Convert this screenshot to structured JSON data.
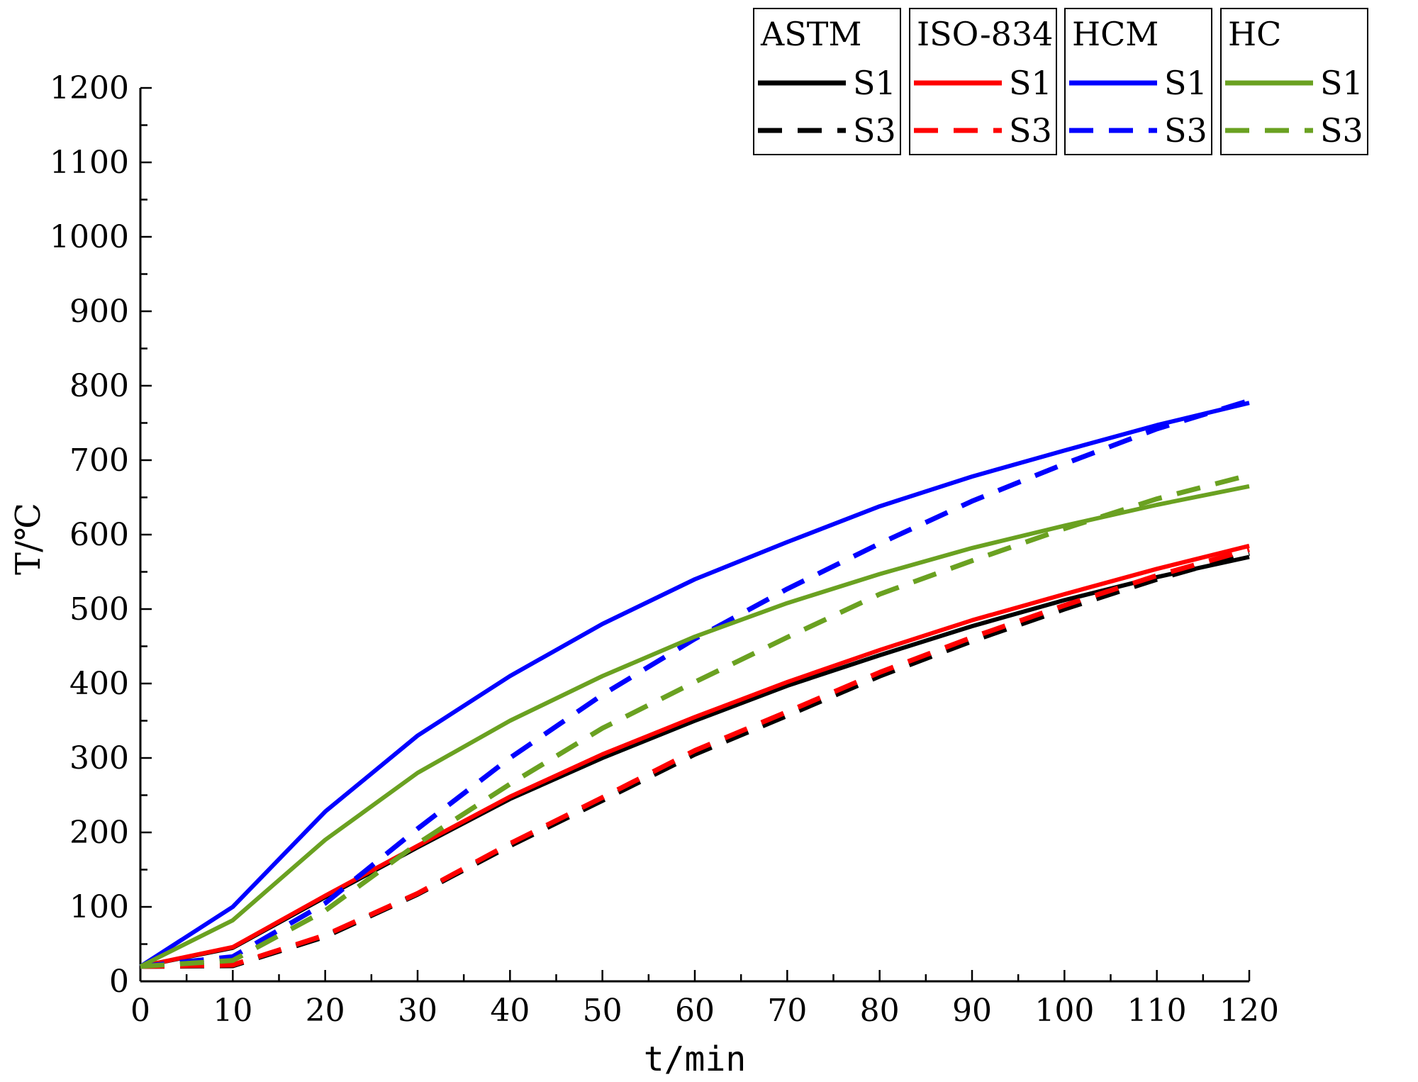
{
  "chart_data": {
    "type": "line",
    "xlabel": "t/min",
    "ylabel": "T/℃",
    "xlim": [
      0,
      120
    ],
    "ylim": [
      0,
      1200
    ],
    "x_ticks": [
      "0",
      "10",
      "20",
      "30",
      "40",
      "50",
      "60",
      "70",
      "80",
      "90",
      "100",
      "110",
      "120"
    ],
    "y_ticks": [
      "0",
      "100",
      "200",
      "300",
      "400",
      "500",
      "600",
      "700",
      "800",
      "900",
      "1000",
      "1100",
      "1200"
    ],
    "grid": false,
    "legend_position": "top-right",
    "legend_groups": [
      {
        "title": "ASTM",
        "color": "#000000",
        "entries": [
          "S1",
          "S3"
        ]
      },
      {
        "title": "ISO-834",
        "color": "#ff0000",
        "entries": [
          "S1",
          "S3"
        ]
      },
      {
        "title": "HCM",
        "color": "#0000ff",
        "entries": [
          "S1",
          "S3"
        ]
      },
      {
        "title": "HC",
        "color": "#6aa121",
        "entries": [
          "S1",
          "S3"
        ]
      }
    ],
    "series": [
      {
        "group": "ASTM",
        "name": "S1",
        "style": "solid",
        "color": "#000000",
        "x": [
          0,
          10,
          20,
          30,
          40,
          50,
          60,
          70,
          80,
          90,
          100,
          110,
          120
        ],
        "y": [
          20,
          45,
          113,
          180,
          245,
          300,
          350,
          397,
          438,
          477,
          512,
          543,
          570
        ]
      },
      {
        "group": "ASTM",
        "name": "S3",
        "style": "dashed",
        "color": "#000000",
        "x": [
          0,
          10,
          20,
          30,
          40,
          50,
          60,
          70,
          80,
          90,
          100,
          110,
          120
        ],
        "y": [
          20,
          21,
          60,
          117,
          182,
          243,
          305,
          357,
          410,
          457,
          500,
          540,
          575
        ]
      },
      {
        "group": "ISO-834",
        "name": "S1",
        "style": "solid",
        "color": "#ff0000",
        "x": [
          0,
          10,
          20,
          30,
          40,
          50,
          60,
          70,
          80,
          90,
          100,
          110,
          120
        ],
        "y": [
          20,
          46,
          115,
          182,
          248,
          305,
          355,
          402,
          445,
          485,
          520,
          554,
          585
        ]
      },
      {
        "group": "ISO-834",
        "name": "S3",
        "style": "dashed",
        "color": "#ff0000",
        "x": [
          0,
          10,
          20,
          30,
          40,
          50,
          60,
          70,
          80,
          90,
          100,
          110,
          120
        ],
        "y": [
          20,
          22,
          62,
          118,
          185,
          247,
          310,
          362,
          415,
          462,
          505,
          545,
          580
        ]
      },
      {
        "group": "HCM",
        "name": "S1",
        "style": "solid",
        "color": "#0000ff",
        "x": [
          0,
          10,
          20,
          30,
          40,
          50,
          60,
          70,
          80,
          90,
          100,
          110,
          120
        ],
        "y": [
          20,
          100,
          228,
          330,
          410,
          480,
          540,
          590,
          638,
          678,
          713,
          747,
          777
        ]
      },
      {
        "group": "HCM",
        "name": "S3",
        "style": "dashed",
        "color": "#0000ff",
        "x": [
          0,
          10,
          20,
          30,
          40,
          50,
          60,
          70,
          80,
          90,
          100,
          110,
          120
        ],
        "y": [
          20,
          33,
          105,
          205,
          300,
          385,
          460,
          527,
          588,
          645,
          695,
          742,
          780
        ]
      },
      {
        "group": "HC",
        "name": "S1",
        "style": "solid",
        "color": "#6aa121",
        "x": [
          0,
          10,
          20,
          30,
          40,
          50,
          60,
          70,
          80,
          90,
          100,
          110,
          120
        ],
        "y": [
          20,
          82,
          190,
          280,
          350,
          410,
          463,
          508,
          547,
          582,
          612,
          640,
          665
        ]
      },
      {
        "group": "HC",
        "name": "S3",
        "style": "dashed",
        "color": "#6aa121",
        "x": [
          0,
          10,
          20,
          30,
          40,
          50,
          60,
          70,
          80,
          90,
          100,
          110,
          120
        ],
        "y": [
          20,
          28,
          95,
          185,
          265,
          340,
          402,
          462,
          520,
          565,
          608,
          648,
          680
        ]
      }
    ]
  }
}
